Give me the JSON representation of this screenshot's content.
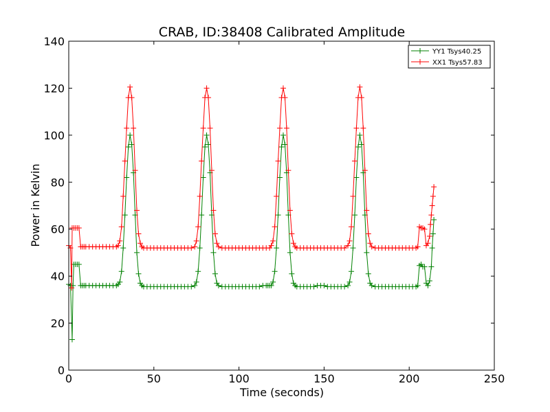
{
  "chart_data": {
    "type": "line",
    "title": "CRAB, ID:38408 Calibrated Amplitude",
    "xlabel": "Time (seconds)",
    "ylabel": "Power in Kelvin",
    "xlim": [
      0,
      250
    ],
    "ylim": [
      0,
      140
    ],
    "xticks": [
      0,
      50,
      100,
      150,
      200,
      250
    ],
    "yticks": [
      0,
      20,
      40,
      60,
      80,
      100,
      120,
      140
    ],
    "xtick_labels": [
      "0",
      "50",
      "100",
      "150",
      "200",
      "250"
    ],
    "ytick_labels": [
      "0",
      "20",
      "40",
      "60",
      "80",
      "100",
      "120",
      "140"
    ],
    "grid": false,
    "legend_position": "top-right",
    "marker": "plus",
    "series": [
      {
        "name": "YY1 Tsys40.25",
        "color": "#008000",
        "points": [
          [
            0,
            36.5
          ],
          [
            1,
            36
          ],
          [
            2,
            13
          ],
          [
            2.5,
            36
          ],
          [
            3,
            45
          ],
          [
            4,
            45
          ],
          [
            5,
            45
          ],
          [
            6,
            45
          ],
          [
            7,
            36
          ],
          [
            8,
            36
          ],
          [
            9,
            36
          ],
          [
            10,
            36
          ],
          [
            12,
            36
          ],
          [
            14,
            36
          ],
          [
            16,
            36
          ],
          [
            18,
            36
          ],
          [
            20,
            36
          ],
          [
            22,
            36
          ],
          [
            24,
            36
          ],
          [
            26,
            36
          ],
          [
            28,
            36
          ],
          [
            29,
            36.5
          ],
          [
            30,
            37.5
          ],
          [
            31,
            42
          ],
          [
            32,
            52
          ],
          [
            33,
            66
          ],
          [
            34,
            82
          ],
          [
            35,
            95
          ],
          [
            36,
            100
          ],
          [
            37,
            96
          ],
          [
            38,
            84
          ],
          [
            39,
            66
          ],
          [
            40,
            50
          ],
          [
            41,
            41
          ],
          [
            42,
            37
          ],
          [
            43,
            36
          ],
          [
            44,
            35.5
          ],
          [
            46,
            35.5
          ],
          [
            48,
            35.5
          ],
          [
            50,
            35.5
          ],
          [
            52,
            35.5
          ],
          [
            54,
            35.5
          ],
          [
            56,
            35.5
          ],
          [
            58,
            35.5
          ],
          [
            60,
            35.5
          ],
          [
            62,
            35.5
          ],
          [
            64,
            35.5
          ],
          [
            66,
            35.5
          ],
          [
            68,
            35.5
          ],
          [
            70,
            35.5
          ],
          [
            72,
            35.5
          ],
          [
            74,
            36
          ],
          [
            75,
            37.5
          ],
          [
            76,
            42
          ],
          [
            77,
            52
          ],
          [
            78,
            66
          ],
          [
            79,
            82
          ],
          [
            80,
            95
          ],
          [
            81,
            100
          ],
          [
            82,
            96
          ],
          [
            83,
            84
          ],
          [
            84,
            66
          ],
          [
            85,
            50
          ],
          [
            86,
            41
          ],
          [
            87,
            37
          ],
          [
            88,
            36
          ],
          [
            90,
            35.5
          ],
          [
            92,
            35.5
          ],
          [
            94,
            35.5
          ],
          [
            96,
            35.5
          ],
          [
            98,
            35.5
          ],
          [
            100,
            35.5
          ],
          [
            102,
            35.5
          ],
          [
            104,
            35.5
          ],
          [
            106,
            35.5
          ],
          [
            108,
            35.5
          ],
          [
            110,
            35.5
          ],
          [
            112,
            35.5
          ],
          [
            114,
            36
          ],
          [
            116,
            36
          ],
          [
            117,
            36
          ],
          [
            118,
            36
          ],
          [
            119,
            36
          ],
          [
            120,
            37.5
          ],
          [
            121,
            42
          ],
          [
            122,
            52
          ],
          [
            123,
            66
          ],
          [
            124,
            82
          ],
          [
            125,
            95
          ],
          [
            126,
            100
          ],
          [
            127,
            96
          ],
          [
            128,
            84
          ],
          [
            129,
            66
          ],
          [
            130,
            50
          ],
          [
            131,
            41
          ],
          [
            132,
            37
          ],
          [
            133,
            36
          ],
          [
            134,
            35.5
          ],
          [
            136,
            35.5
          ],
          [
            138,
            35.5
          ],
          [
            140,
            35.5
          ],
          [
            142,
            35.5
          ],
          [
            144,
            35.5
          ],
          [
            146,
            36
          ],
          [
            148,
            36
          ],
          [
            150,
            36
          ],
          [
            152,
            35.5
          ],
          [
            154,
            35.5
          ],
          [
            156,
            35.5
          ],
          [
            158,
            35.5
          ],
          [
            160,
            35.5
          ],
          [
            162,
            35.5
          ],
          [
            164,
            36
          ],
          [
            165,
            37.5
          ],
          [
            166,
            42
          ],
          [
            167,
            52
          ],
          [
            168,
            66
          ],
          [
            169,
            82
          ],
          [
            170,
            95
          ],
          [
            171,
            100
          ],
          [
            172,
            96
          ],
          [
            173,
            84
          ],
          [
            174,
            66
          ],
          [
            175,
            50
          ],
          [
            176,
            41
          ],
          [
            177,
            37
          ],
          [
            178,
            36
          ],
          [
            180,
            35.5
          ],
          [
            182,
            35.5
          ],
          [
            184,
            35.5
          ],
          [
            186,
            35.5
          ],
          [
            188,
            35.5
          ],
          [
            190,
            35.5
          ],
          [
            192,
            35.5
          ],
          [
            194,
            35.5
          ],
          [
            196,
            35.5
          ],
          [
            198,
            35.5
          ],
          [
            200,
            35.5
          ],
          [
            202,
            35.5
          ],
          [
            204,
            35.5
          ],
          [
            205,
            36
          ],
          [
            206,
            44.5
          ],
          [
            207,
            45
          ],
          [
            208,
            44
          ],
          [
            209,
            44
          ],
          [
            210,
            37
          ],
          [
            211,
            36
          ],
          [
            212,
            38
          ],
          [
            213,
            44
          ],
          [
            213.5,
            52
          ],
          [
            214,
            58
          ],
          [
            214.5,
            64
          ]
        ]
      },
      {
        "name": "XX1 Tsys57.83",
        "color": "#ff0000",
        "points": [
          [
            0,
            53
          ],
          [
            1,
            52
          ],
          [
            1.7,
            35
          ],
          [
            2,
            60.5
          ],
          [
            3,
            60.5
          ],
          [
            4,
            60.5
          ],
          [
            5,
            60.5
          ],
          [
            6,
            60.5
          ],
          [
            7,
            52.5
          ],
          [
            8,
            52.5
          ],
          [
            9,
            52.5
          ],
          [
            10,
            52.5
          ],
          [
            12,
            52.5
          ],
          [
            14,
            52.5
          ],
          [
            16,
            52.5
          ],
          [
            18,
            52.5
          ],
          [
            20,
            52.5
          ],
          [
            22,
            52.5
          ],
          [
            24,
            52.5
          ],
          [
            26,
            52.5
          ],
          [
            28,
            52.5
          ],
          [
            29,
            53
          ],
          [
            30,
            55
          ],
          [
            31,
            61
          ],
          [
            32,
            74
          ],
          [
            33,
            89
          ],
          [
            34,
            103
          ],
          [
            35,
            116
          ],
          [
            36,
            120.5
          ],
          [
            37,
            116
          ],
          [
            38,
            103
          ],
          [
            39,
            85
          ],
          [
            40,
            68
          ],
          [
            41,
            58
          ],
          [
            42,
            54
          ],
          [
            43,
            52.5
          ],
          [
            44,
            52
          ],
          [
            46,
            52
          ],
          [
            48,
            52
          ],
          [
            50,
            52
          ],
          [
            52,
            52
          ],
          [
            54,
            52
          ],
          [
            56,
            52
          ],
          [
            58,
            52
          ],
          [
            60,
            52
          ],
          [
            62,
            52
          ],
          [
            64,
            52
          ],
          [
            66,
            52
          ],
          [
            68,
            52
          ],
          [
            70,
            52
          ],
          [
            72,
            52
          ],
          [
            74,
            52.5
          ],
          [
            75,
            55
          ],
          [
            76,
            61
          ],
          [
            77,
            74
          ],
          [
            78,
            89
          ],
          [
            79,
            103
          ],
          [
            80,
            116
          ],
          [
            81,
            120
          ],
          [
            82,
            116
          ],
          [
            83,
            103
          ],
          [
            84,
            85
          ],
          [
            85,
            68
          ],
          [
            86,
            58
          ],
          [
            87,
            54
          ],
          [
            88,
            52.5
          ],
          [
            90,
            52
          ],
          [
            92,
            52
          ],
          [
            94,
            52
          ],
          [
            96,
            52
          ],
          [
            98,
            52
          ],
          [
            100,
            52
          ],
          [
            102,
            52
          ],
          [
            104,
            52
          ],
          [
            106,
            52
          ],
          [
            108,
            52
          ],
          [
            110,
            52
          ],
          [
            112,
            52
          ],
          [
            114,
            52
          ],
          [
            116,
            52
          ],
          [
            118,
            52
          ],
          [
            119,
            53
          ],
          [
            120,
            55
          ],
          [
            121,
            61
          ],
          [
            122,
            74
          ],
          [
            123,
            89
          ],
          [
            124,
            103
          ],
          [
            125,
            116
          ],
          [
            126,
            120
          ],
          [
            127,
            116
          ],
          [
            128,
            103
          ],
          [
            129,
            85
          ],
          [
            130,
            68
          ],
          [
            131,
            58
          ],
          [
            132,
            54
          ],
          [
            133,
            52.5
          ],
          [
            134,
            52
          ],
          [
            136,
            52
          ],
          [
            138,
            52
          ],
          [
            140,
            52
          ],
          [
            142,
            52
          ],
          [
            144,
            52
          ],
          [
            146,
            52
          ],
          [
            148,
            52
          ],
          [
            150,
            52
          ],
          [
            152,
            52
          ],
          [
            154,
            52
          ],
          [
            156,
            52
          ],
          [
            158,
            52
          ],
          [
            160,
            52
          ],
          [
            162,
            52
          ],
          [
            164,
            53
          ],
          [
            165,
            55
          ],
          [
            166,
            61
          ],
          [
            167,
            74
          ],
          [
            168,
            89
          ],
          [
            169,
            103
          ],
          [
            170,
            116
          ],
          [
            171,
            120.5
          ],
          [
            172,
            116
          ],
          [
            173,
            103
          ],
          [
            174,
            85
          ],
          [
            175,
            68
          ],
          [
            176,
            58
          ],
          [
            177,
            54
          ],
          [
            178,
            52.5
          ],
          [
            180,
            52
          ],
          [
            182,
            52
          ],
          [
            184,
            52
          ],
          [
            186,
            52
          ],
          [
            188,
            52
          ],
          [
            190,
            52
          ],
          [
            192,
            52
          ],
          [
            194,
            52
          ],
          [
            196,
            52
          ],
          [
            198,
            52
          ],
          [
            200,
            52
          ],
          [
            202,
            52
          ],
          [
            204,
            52
          ],
          [
            205,
            52.5
          ],
          [
            206,
            61
          ],
          [
            207,
            60.5
          ],
          [
            208,
            60.5
          ],
          [
            209,
            60
          ],
          [
            210,
            53
          ],
          [
            211,
            54
          ],
          [
            212,
            57
          ],
          [
            212.5,
            62
          ],
          [
            213,
            66
          ],
          [
            213.5,
            70
          ],
          [
            214,
            74
          ],
          [
            214.5,
            78
          ]
        ]
      }
    ]
  }
}
